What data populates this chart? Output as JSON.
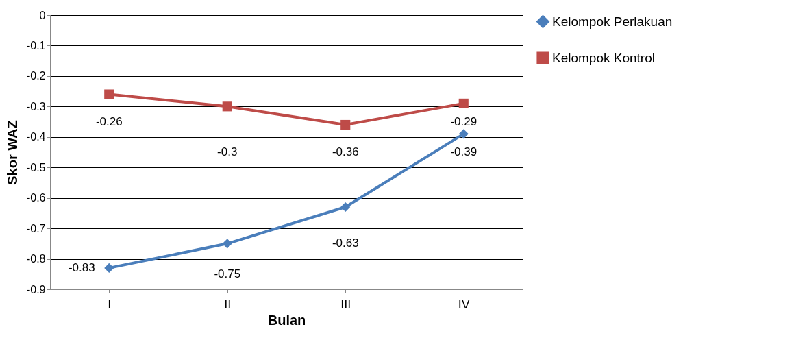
{
  "chart_data": {
    "type": "line",
    "xlabel": "Bulan",
    "ylabel": "Skor WAZ",
    "categories": [
      "I",
      "II",
      "III",
      "IV"
    ],
    "series": [
      {
        "name": "Kelompok Perlakuan",
        "color": "#4a7ebb",
        "marker": "diamond",
        "values": [
          -0.83,
          -0.75,
          -0.63,
          -0.39
        ]
      },
      {
        "name": "Kelompok Kontrol",
        "color": "#be4b48",
        "marker": "square",
        "values": [
          -0.26,
          -0.3,
          -0.36,
          -0.29
        ]
      }
    ],
    "ylim": [
      -0.9,
      0
    ],
    "yticks": [
      -0.9,
      -0.8,
      -0.7,
      -0.6,
      -0.5,
      -0.4,
      -0.3,
      -0.2,
      -0.1,
      0
    ],
    "grid": "y",
    "legend": "right",
    "data_labels": true
  }
}
